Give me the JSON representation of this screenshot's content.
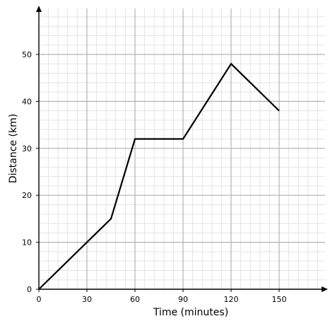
{
  "chart_data": {
    "type": "line",
    "xlabel": "Time (minutes)",
    "ylabel": "Distance (km)",
    "xlim": [
      0,
      150
    ],
    "ylim": [
      0,
      50
    ],
    "x_ticks": [
      0,
      30,
      60,
      90,
      120,
      150
    ],
    "y_ticks": [
      0,
      10,
      20,
      30,
      40,
      50
    ],
    "minor_grid_step_x": 6,
    "minor_grid_step_y": 2,
    "grid": true,
    "series": [
      {
        "x": [
          0,
          45,
          60,
          90,
          120,
          150
        ],
        "y": [
          0,
          15,
          32,
          32,
          48,
          38
        ]
      }
    ]
  },
  "colors": {
    "line": "#000000",
    "axis": "#000000",
    "major_grid": "#b4b4b4",
    "minor_grid": "#e3e3e3"
  }
}
